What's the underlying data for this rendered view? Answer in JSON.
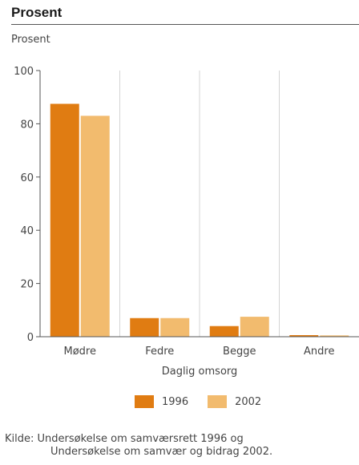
{
  "title": "Prosent",
  "chart_data": {
    "type": "bar",
    "ylabel": "Prosent",
    "xlabel": "Daglig omsorg",
    "categories": [
      "Mødre",
      "Fedre",
      "Begge",
      "Andre"
    ],
    "series": [
      {
        "name": "1996",
        "values": [
          87.5,
          7,
          4,
          0.6
        ],
        "color": "#e07c12"
      },
      {
        "name": "2002",
        "values": [
          83,
          7,
          7.5,
          0.5
        ],
        "color": "#f2bb6e"
      }
    ],
    "ylim": [
      0,
      100
    ],
    "yticks": [
      0,
      20,
      40,
      60,
      80,
      100
    ],
    "grid": "vertical",
    "legend_placement": "bottom"
  },
  "source": {
    "line1": "Kilde: Undersøkelse om samværsrett 1996 og",
    "line2": "Undersøkelse om samvær og bidrag 2002."
  }
}
